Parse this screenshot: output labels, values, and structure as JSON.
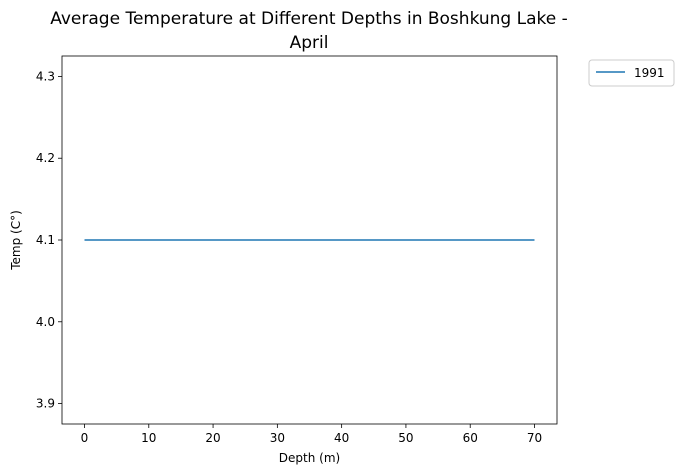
{
  "chart_data": {
    "type": "line",
    "title_lines": [
      "Average Temperature at Different Depths in Boshkung Lake -",
      "April"
    ],
    "xlabel": "Depth (m)",
    "ylabel": "Temp (C°)",
    "xlim": [
      -3.5,
      73.5
    ],
    "ylim": [
      3.875,
      4.325
    ],
    "xticks": [
      0,
      10,
      20,
      30,
      40,
      50,
      60,
      70
    ],
    "yticks": [
      3.9,
      4.0,
      4.1,
      4.2,
      4.3
    ],
    "ytick_labels": [
      "3.9",
      "4.0",
      "4.1",
      "4.2",
      "4.3"
    ],
    "grid": false,
    "legend_position": "outside-top-right",
    "series": [
      {
        "name": "1991",
        "color": "#1f77b4",
        "x": [
          0,
          70
        ],
        "y": [
          4.1,
          4.1
        ]
      }
    ]
  }
}
